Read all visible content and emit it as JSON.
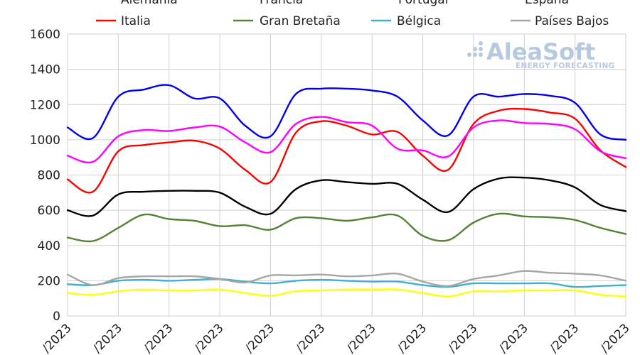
{
  "chart_data": {
    "type": "line",
    "title": "",
    "xlabel": "",
    "ylabel": "",
    "ylim": [
      0,
      1600
    ],
    "yticks": [
      0,
      200,
      400,
      600,
      800,
      1000,
      1200,
      1400,
      1600
    ],
    "grid": true,
    "legend_placement": "top",
    "x_tick_labels": [
      "/2023",
      "/2023",
      "/2023",
      "/2023",
      "/2023",
      "/2023",
      "/2023",
      "/2023",
      "/2023",
      "/2023",
      "/2023",
      "/2023"
    ],
    "legend_row1": [
      "Alemania",
      "Francia",
      "Portugal",
      "España"
    ],
    "series": [
      {
        "name": "Alemania",
        "color": "#0000ee",
        "values": [
          1070,
          1010,
          1245,
          1285,
          1310,
          1235,
          1235,
          1080,
          1020,
          1260,
          1290,
          1290,
          1280,
          1245,
          1110,
          1025,
          1245,
          1245,
          1260,
          1250,
          1210,
          1030,
          1000
        ]
      },
      {
        "name": "Francia",
        "color": "#ff00ff",
        "values": [
          910,
          875,
          1020,
          1055,
          1050,
          1070,
          1075,
          985,
          930,
          1090,
          1130,
          1100,
          1080,
          950,
          940,
          905,
          1070,
          1110,
          1095,
          1090,
          1060,
          935,
          895
        ]
      },
      {
        "name": "Portugal",
        "color": "#000000",
        "values": [
          600,
          570,
          690,
          705,
          710,
          710,
          700,
          620,
          580,
          720,
          770,
          760,
          750,
          750,
          660,
          590,
          720,
          780,
          785,
          770,
          730,
          630,
          595
        ]
      },
      {
        "name": "España",
        "color": "#000000",
        "values": [
          600,
          570,
          690,
          705,
          710,
          710,
          700,
          620,
          580,
          720,
          770,
          760,
          750,
          750,
          660,
          590,
          720,
          780,
          785,
          770,
          730,
          630,
          595
        ]
      },
      {
        "name": "Italia",
        "color": "#ff0000",
        "values": [
          775,
          705,
          935,
          970,
          985,
          995,
          950,
          830,
          760,
          1040,
          1105,
          1080,
          1030,
          1045,
          910,
          830,
          1090,
          1165,
          1175,
          1155,
          1120,
          940,
          845
        ]
      },
      {
        "name": "Gran Bretaña",
        "color": "#548235",
        "values": [
          445,
          425,
          500,
          575,
          550,
          540,
          510,
          515,
          490,
          555,
          555,
          540,
          560,
          570,
          455,
          430,
          530,
          580,
          565,
          560,
          545,
          500,
          465
        ]
      },
      {
        "name": "Bélgica",
        "color": "#3fb0d0",
        "values": [
          180,
          175,
          200,
          205,
          200,
          205,
          210,
          195,
          185,
          200,
          205,
          200,
          195,
          195,
          175,
          165,
          185,
          185,
          185,
          185,
          165,
          170,
          175
        ]
      },
      {
        "name": "Países Bajos",
        "color": "#a6a6a6",
        "values": [
          235,
          175,
          215,
          225,
          225,
          225,
          210,
          190,
          230,
          230,
          235,
          225,
          230,
          240,
          195,
          170,
          210,
          230,
          255,
          245,
          240,
          230,
          200
        ]
      },
      {
        "name": "",
        "color": "#ffff00",
        "values": [
          130,
          120,
          140,
          150,
          145,
          145,
          150,
          130,
          115,
          140,
          145,
          150,
          150,
          150,
          130,
          110,
          140,
          140,
          145,
          145,
          145,
          120,
          110
        ]
      }
    ]
  },
  "watermark": {
    "name": "AleaSoft",
    "subtitle": "ENERGY FORECASTING",
    "color": "#b7c9df"
  }
}
